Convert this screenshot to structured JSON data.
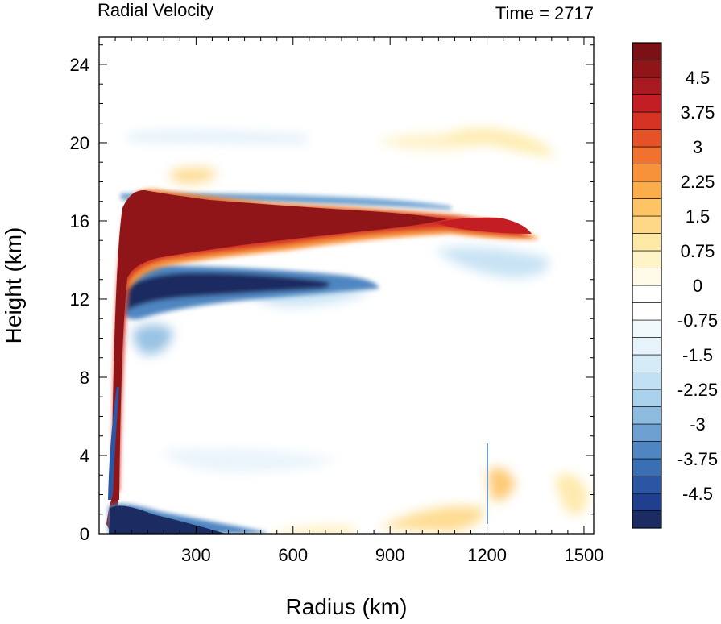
{
  "chart_data": {
    "type": "heatmap",
    "title_left": "Radial Velocity",
    "title_right": "Time = 2717",
    "xlabel": "Radius (km)",
    "ylabel": "Height (km)",
    "xlim": [
      0,
      1530
    ],
    "ylim": [
      0,
      25.4
    ],
    "x_ticks": [
      300,
      600,
      900,
      1200,
      1500
    ],
    "y_ticks": [
      0,
      4,
      8,
      12,
      16,
      20,
      24
    ],
    "colorbar": {
      "min": -5.25,
      "max": 5.25,
      "step": 0.375,
      "tick_labels": [
        "4.5",
        "3.75",
        "3",
        "2.25",
        "1.5",
        "0.75",
        "0",
        "-0.75",
        "-1.5",
        "-2.25",
        "-3",
        "-3.75",
        "-4.5"
      ],
      "colors": [
        "#1b2c62",
        "#213f8f",
        "#2a56a3",
        "#3b6fb3",
        "#4f86c1",
        "#6da0d0",
        "#8dbbe0",
        "#aad2ec",
        "#c2e0f3",
        "#d6ebf8",
        "#e6f3fb",
        "#f2f9fd",
        "#ffffff",
        "#ffffff",
        "#fffbe8",
        "#fff3c8",
        "#fee8a6",
        "#fed886",
        "#fdc466",
        "#fbad4b",
        "#f7913a",
        "#f1722e",
        "#e65227",
        "#d73325",
        "#c21e24",
        "#a81a1f",
        "#8f1519",
        "#7a1115"
      ]
    },
    "features": [
      {
        "name": "upper-level outflow",
        "value": 5.5
      },
      {
        "name": "mid-level inflow",
        "value": -5.0
      },
      {
        "name": "boundary-layer inflow",
        "value": -5.0
      }
    ]
  }
}
